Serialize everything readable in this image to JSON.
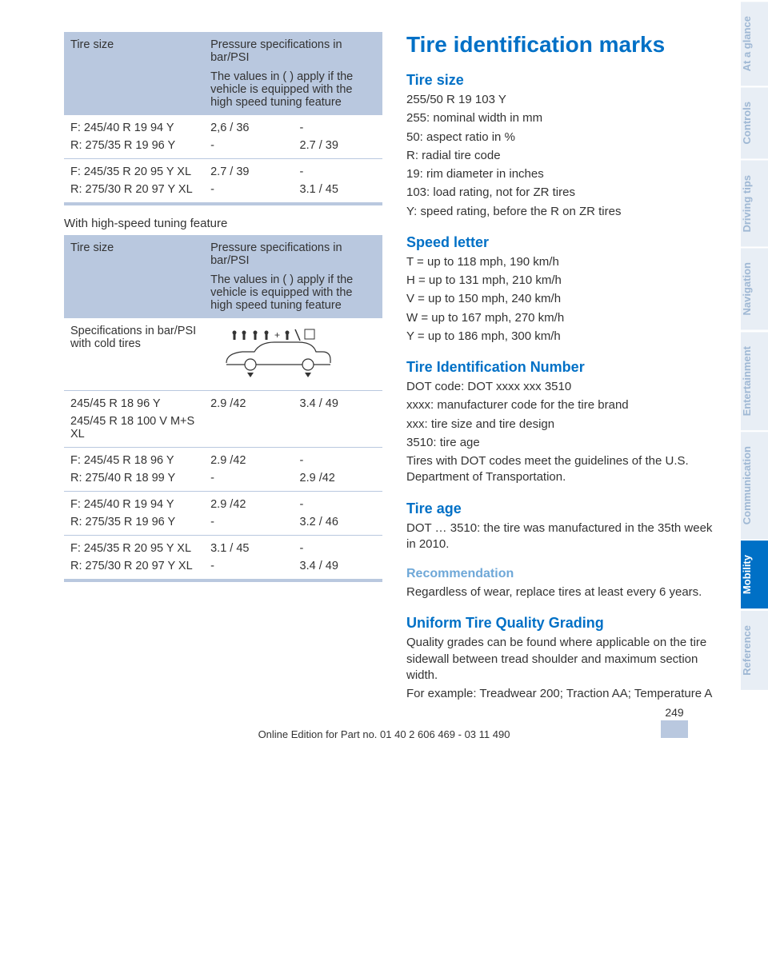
{
  "sidebar": {
    "tabs": [
      {
        "label": "At a glance",
        "active": false
      },
      {
        "label": "Controls",
        "active": false
      },
      {
        "label": "Driving tips",
        "active": false
      },
      {
        "label": "Navigation",
        "active": false
      },
      {
        "label": "Entertainment",
        "active": false
      },
      {
        "label": "Communication",
        "active": false
      },
      {
        "label": "Mobility",
        "active": true
      },
      {
        "label": "Reference",
        "active": false
      }
    ]
  },
  "table1": {
    "head": {
      "c1": "Tire size",
      "c2a": "Pressure specifications in bar/PSI",
      "c2b": "The values in ( ) apply if the vehicle is equipped with the high speed tuning feature"
    },
    "rows": [
      {
        "size1": "F: 245/40 R 19 94 Y",
        "size2": "R: 275/35 R 19 96 Y",
        "v1a": "2,6 / 36",
        "v1b": "-",
        "v2a": "-",
        "v2b": "2.7 / 39"
      },
      {
        "size1": "F: 245/35 R 20 95 Y XL",
        "size2": "R: 275/30 R 20 97 Y XL",
        "v1a": "2.7 / 39",
        "v1b": "-",
        "v2a": "-",
        "v2b": "3.1 / 45"
      }
    ]
  },
  "caption2": "With high-speed tuning feature",
  "table2": {
    "head": {
      "c1": "Tire size",
      "c2a": "Pressure specifications in bar/PSI",
      "c2b": "The values in ( ) apply if the vehicle is equipped with the high speed tuning feature"
    },
    "specrow": {
      "label": "Specifications in bar/PSI with cold tires"
    },
    "rows": [
      {
        "size1": "245/45 R 18 96 Y",
        "size2": "245/45 R 18 100 V M+S XL",
        "v1a": "2.9 /42",
        "v1b": "",
        "v2a": "3.4 / 49",
        "v2b": ""
      },
      {
        "size1": "F: 245/45 R 18 96 Y",
        "size2": "R: 275/40 R 18 99 Y",
        "v1a": "2.9 /42",
        "v1b": "-",
        "v2a": "-",
        "v2b": "2.9 /42"
      },
      {
        "size1": "F: 245/40 R 19 94 Y",
        "size2": "R: 275/35 R 19 96 Y",
        "v1a": "2.9 /42",
        "v1b": "-",
        "v2a": "-",
        "v2b": "3.2 / 46"
      },
      {
        "size1": "F: 245/35 R 20 95 Y XL",
        "size2": "R: 275/30 R 20 97 Y XL",
        "v1a": "3.1 / 45",
        "v1b": "-",
        "v2a": "-",
        "v2b": "3.4 / 49"
      }
    ]
  },
  "right": {
    "h1": "Tire identification marks",
    "tiresize": {
      "h": "Tire size",
      "lines": [
        "255/50 R 19 103 Y",
        "255: nominal width in mm",
        "50: aspect ratio in %",
        "R: radial tire code",
        "19: rim diameter in inches",
        "103: load rating, not for ZR tires",
        "Y: speed rating, before the R on ZR tires"
      ]
    },
    "speed": {
      "h": "Speed letter",
      "lines": [
        "T = up to 118 mph, 190 km/h",
        "H = up to 131 mph, 210 km/h",
        "V = up to 150 mph, 240 km/h",
        "W = up to 167 mph, 270 km/h",
        "Y = up to 186 mph, 300 km/h"
      ]
    },
    "tin": {
      "h": "Tire Identification Number",
      "lines": [
        "DOT code: DOT xxxx xxx 3510",
        "xxxx: manufacturer code for the tire brand",
        "xxx: tire size and tire design",
        "3510: tire age",
        "Tires with DOT codes meet the guidelines of the U.S. Department of Transportation."
      ]
    },
    "age": {
      "h": "Tire age",
      "lines": [
        "DOT … 3510: the tire was manufactured in the 35th week in 2010."
      ]
    },
    "rec": {
      "h": "Recommendation",
      "lines": [
        "Regardless of wear, replace tires at least every 6 years."
      ]
    },
    "utqg": {
      "h": "Uniform Tire Quality Grading",
      "lines": [
        "Quality grades can be found where applicable on the tire sidewall between tread shoulder and maximum section width.",
        "For example: Treadwear 200; Traction AA; Temperature A"
      ]
    }
  },
  "footer": {
    "page": "249",
    "line": "Online Edition for Part no. 01 40 2 606 469 - 03 11 490"
  }
}
